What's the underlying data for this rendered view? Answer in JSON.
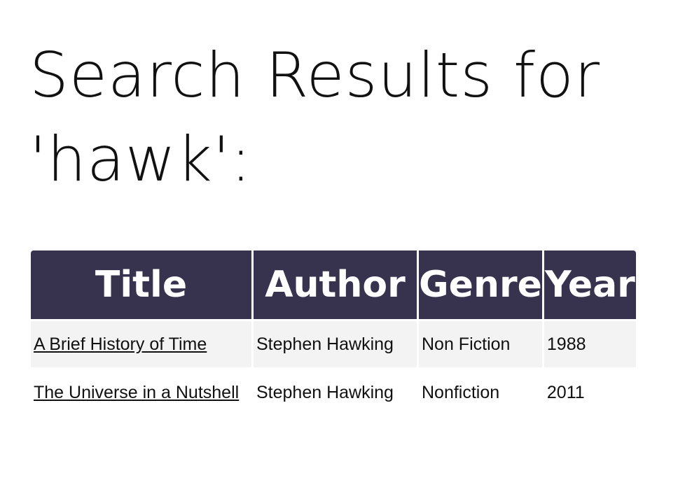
{
  "page": {
    "heading": "Search Results for 'hawk':"
  },
  "table": {
    "headers": {
      "title": "Title",
      "author": "Author",
      "genre": "Genre",
      "year": "Year"
    },
    "rows": [
      {
        "title": "A Brief History of Time",
        "author": "Stephen Hawking",
        "genre": "Non Fiction",
        "year": "1988"
      },
      {
        "title": "The Universe in a Nutshell",
        "author": "Stephen Hawking",
        "genre": "Nonfiction",
        "year": "2011"
      }
    ]
  },
  "colors": {
    "header_background": "#37324d",
    "header_text": "#ffffff",
    "odd_row_background": "#f3f3f3"
  }
}
